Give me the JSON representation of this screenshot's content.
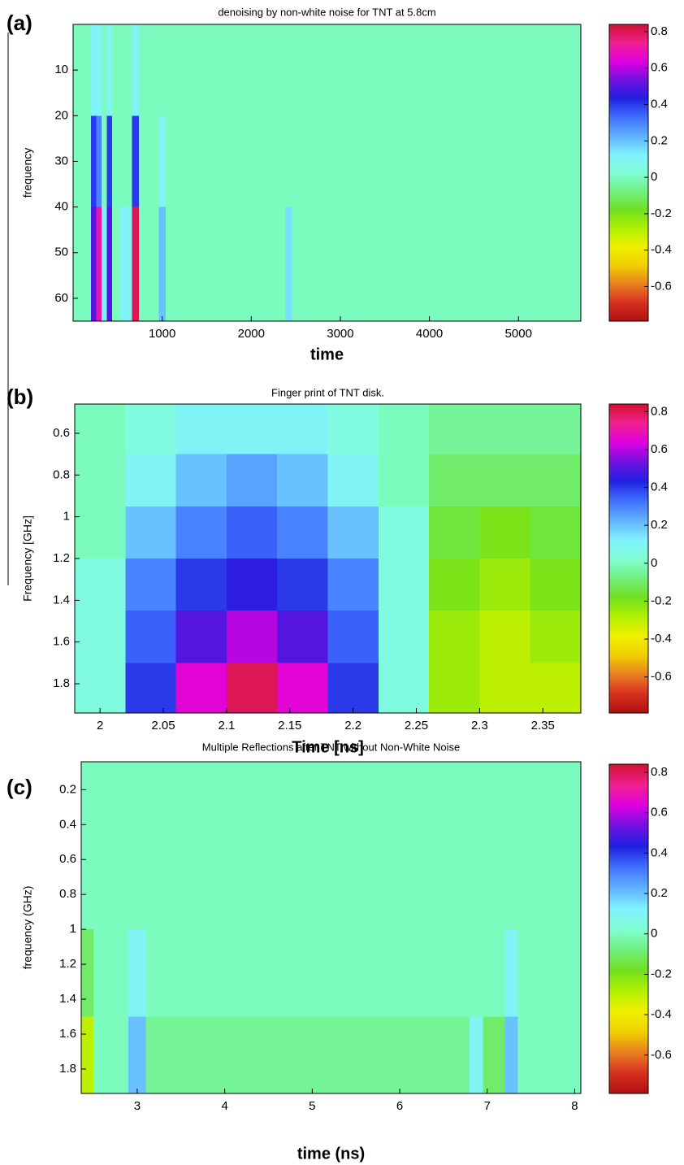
{
  "colormap": [
    "#b01010",
    "#d83020",
    "#e88020",
    "#f0d000",
    "#f0f000",
    "#b0f000",
    "#70e020",
    "#70f080",
    "#80ffd4",
    "#80f0ff",
    "#60b0ff",
    "#4070ff",
    "#2020e0",
    "#7010e0",
    "#e000e0",
    "#f02090",
    "#d01030"
  ],
  "chart_data": [
    {
      "type": "heatmap",
      "panel_label": "(a)",
      "title": "denoising by non-white noise for TNT at 5.8cm",
      "x_label": "time",
      "y_label": "frequency",
      "xlim": [
        0,
        5700
      ],
      "ylim": [
        0,
        65
      ],
      "y_reversed": true,
      "xticks": [
        1000,
        2000,
        3000,
        4000,
        5000
      ],
      "yticks": [
        10,
        20,
        30,
        40,
        50,
        60
      ],
      "x_edges": [
        0,
        200,
        260,
        320,
        380,
        440,
        520,
        660,
        740,
        960,
        1040,
        2380,
        2460,
        5700
      ],
      "y_edges": [
        0,
        20,
        40,
        65
      ],
      "z": [
        [
          0,
          0.1,
          0.1,
          0,
          0.1,
          0,
          0,
          0.1,
          0,
          0,
          0,
          0,
          0
        ],
        [
          0,
          0.4,
          0.3,
          0,
          0.4,
          0,
          0,
          0.4,
          0,
          0.1,
          0,
          0,
          0
        ],
        [
          0,
          0.5,
          0.7,
          0.1,
          0.5,
          0,
          0.1,
          0.8,
          0,
          0.2,
          0,
          0.15,
          0
        ]
      ],
      "zlim": [
        -0.79,
        0.84
      ],
      "zticks": [
        0.8,
        0.6,
        0.4,
        0.2,
        0,
        -0.2,
        -0.4,
        -0.6
      ]
    },
    {
      "type": "heatmap",
      "panel_label": "(b)",
      "title": "Finger print of TNT disk.",
      "x_label": "Time [ns]",
      "y_label": "Frequency [GHz]",
      "xlim": [
        1.98,
        2.38
      ],
      "ylim": [
        0.46,
        1.94
      ],
      "y_reversed": true,
      "xticks": [
        2,
        2.05,
        2.1,
        2.15,
        2.2,
        2.25,
        2.3,
        2.35
      ],
      "yticks": [
        0.6,
        0.8,
        1,
        1.2,
        1.4,
        1.6,
        1.8
      ],
      "x_edges": [
        1.98,
        2.02,
        2.06,
        2.1,
        2.14,
        2.18,
        2.22,
        2.26,
        2.3,
        2.34,
        2.38
      ],
      "y_edges": [
        0.46,
        0.7,
        0.95,
        1.2,
        1.45,
        1.7,
        1.94
      ],
      "z": [
        [
          0,
          0.05,
          0.1,
          0.1,
          0.1,
          0.05,
          0,
          -0.05,
          -0.05,
          -0.05
        ],
        [
          0,
          0.1,
          0.2,
          0.25,
          0.2,
          0.1,
          0,
          -0.1,
          -0.1,
          -0.1
        ],
        [
          0,
          0.2,
          0.3,
          0.35,
          0.3,
          0.2,
          0.05,
          -0.15,
          -0.2,
          -0.15
        ],
        [
          0.05,
          0.3,
          0.4,
          0.45,
          0.4,
          0.3,
          0.05,
          -0.2,
          -0.25,
          -0.2
        ],
        [
          0.05,
          0.35,
          0.5,
          0.6,
          0.5,
          0.35,
          0.05,
          -0.25,
          -0.3,
          -0.25
        ],
        [
          0.05,
          0.4,
          0.65,
          0.8,
          0.65,
          0.4,
          0.05,
          -0.25,
          -0.3,
          -0.3
        ]
      ],
      "zlim": [
        -0.79,
        0.84
      ],
      "zticks": [
        0.8,
        0.6,
        0.4,
        0.2,
        0,
        -0.2,
        -0.4,
        -0.6
      ]
    },
    {
      "type": "heatmap",
      "panel_label": "(c)",
      "title": "Multiple Reflections after TNT  without Non-White Noise",
      "x_label": "time (ns)",
      "y_label": "frequency (GHz)",
      "xlim": [
        2.36,
        8.07
      ],
      "ylim": [
        0.04,
        1.94
      ],
      "y_reversed": true,
      "xticks": [
        3,
        4,
        5,
        6,
        7,
        8
      ],
      "yticks": [
        0.2,
        0.4,
        0.6,
        0.8,
        1,
        1.2,
        1.4,
        1.6,
        1.8
      ],
      "x_edges": [
        2.36,
        2.5,
        2.9,
        3.1,
        6.8,
        6.95,
        7.2,
        7.35,
        8.07
      ],
      "y_edges": [
        0.04,
        1,
        1.5,
        1.94
      ],
      "z": [
        [
          0,
          0,
          0,
          0,
          0,
          0,
          0,
          0
        ],
        [
          -0.1,
          0,
          0.1,
          0,
          0,
          0,
          0.1,
          0
        ],
        [
          -0.3,
          0,
          0.2,
          -0.05,
          0.1,
          -0.1,
          0.2,
          0
        ]
      ],
      "zlim": [
        -0.79,
        0.84
      ],
      "zticks": [
        0.8,
        0.6,
        0.4,
        0.2,
        0,
        -0.2,
        -0.4,
        -0.6
      ]
    }
  ]
}
